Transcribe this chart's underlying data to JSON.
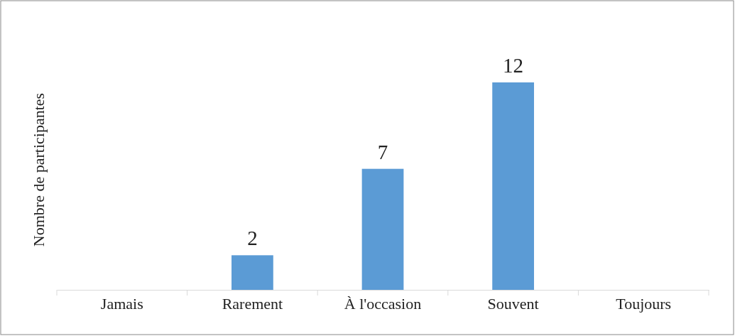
{
  "chart_data": {
    "type": "bar",
    "ylabel": "Nombre de participantes",
    "categories": [
      "Jamais",
      "Rarement",
      "À l'occasion",
      "Souvent",
      "Toujours"
    ],
    "values": [
      null,
      2,
      7,
      12,
      null
    ],
    "color": "#5b9bd5",
    "data_labels": true
  }
}
